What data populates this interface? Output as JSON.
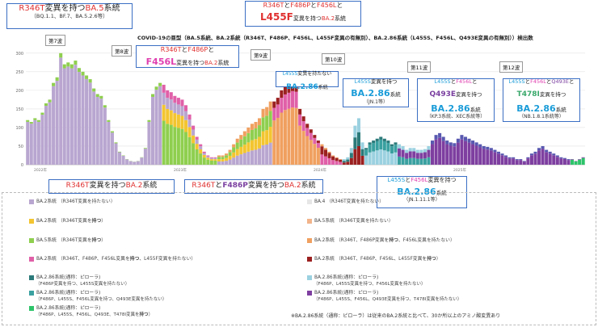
{
  "chart_data": {
    "type": "bar",
    "stacked": true,
    "title": "COVID-19の亜型（BA.5系統、BA.2系統（R346T、F486P、F456L、L455F変異の有無別）、BA.2.86系統（L455S、F456L、Q493E変異の有無別））検出数",
    "y_ticks": [
      "300",
      "250",
      "200",
      "150",
      "100",
      "50",
      "0"
    ],
    "ylim": [
      0,
      330
    ],
    "x_year_labels": [
      "2022年",
      "2023年",
      "2024年",
      "2025年"
    ],
    "series_colors": [
      "#b9a6d0",
      "#f3c530",
      "#8fcf4f",
      "#f0a060",
      "#e060a8",
      "#2c7a7a",
      "#9bd1e0",
      "#7e3fa0",
      "#e6e6e6",
      "#f2b48a",
      "#9b2020",
      "#3aa0a0",
      "#5858b0",
      "#2ec46a"
    ],
    "weekly_totals": [
      120,
      115,
      125,
      120,
      140,
      165,
      175,
      220,
      235,
      300,
      270,
      275,
      270,
      280,
      260,
      250,
      240,
      230,
      205,
      190,
      185,
      160,
      120,
      90,
      60,
      35,
      25,
      15,
      10,
      8,
      10,
      20,
      45,
      120,
      190,
      210,
      220,
      215,
      200,
      195,
      185,
      180,
      175,
      160,
      135,
      105,
      75,
      55,
      35,
      25,
      20,
      20,
      25,
      25,
      30,
      40,
      55,
      70,
      80,
      90,
      100,
      110,
      115,
      125,
      150,
      155,
      170,
      170,
      180,
      200,
      210,
      215,
      220,
      218,
      150,
      130,
      110,
      95,
      80,
      65,
      55,
      45,
      35,
      25,
      20,
      15,
      15,
      20,
      45,
      105,
      125,
      60,
      45,
      60,
      65,
      70,
      75,
      70,
      65,
      55,
      60,
      55,
      50,
      40,
      45,
      45,
      40,
      40,
      42,
      50,
      65,
      80,
      85,
      75,
      65,
      60,
      58,
      70,
      80,
      75,
      70,
      65,
      60,
      55,
      50,
      48,
      45,
      40,
      35,
      30,
      25,
      20,
      20,
      15,
      15,
      10,
      20,
      30,
      35,
      45,
      50,
      40,
      35,
      30,
      25,
      20,
      18,
      15,
      15,
      10,
      15,
      20
    ],
    "annotations": [
      {
        "l1a": "R346T",
        "l1b": "変異を持つ",
        "l1c": "BA.5",
        "l1d": "系統",
        "l2": "（BQ.1.1、BF.7、BA.5.2.6等）"
      },
      {
        "l1a": "R346T",
        "l1b": "と",
        "l1c": "F486P",
        "l1d": "と",
        "l1e": "F456L",
        "l1f": "と",
        "l2a": "L455F",
        "l2b": "変異を持つ",
        "l2c": "BA.2",
        "l2d": "系統"
      },
      {
        "l1a": "R346T",
        "l1b": "と",
        "l1c": "F486P",
        "l1d": "と",
        "l2a": "F456L",
        "l2b": "変異を持つ",
        "l2c": "BA.2",
        "l2d": "系統"
      },
      {
        "l1a": "L455S",
        "l1b": "変異を持たない",
        "l2a": "BA.2.86",
        "l2b": "系統"
      },
      {
        "l1a": "L455S",
        "l1b": "変異を持つ",
        "l2a": "BA.2.86",
        "l2b": "系統",
        "l3": "（JN.1等）"
      },
      {
        "l1a": "L455S",
        "l1b": "と",
        "l1c": "F456L",
        "l1d": "と",
        "l2a": "Q493E",
        "l2b": "変異を持つ",
        "l3a": "BA.2.86",
        "l3b": "系統",
        "l4": "（KP.3系統、XEC系統等）"
      },
      {
        "l1a": "L455S",
        "l1b": "と",
        "l1c": "F456L",
        "l1d": "と",
        "l1e": "Q493E",
        "l1f": "と",
        "l2a": "T478I",
        "l2b": "変異を持つ",
        "l3a": "BA.2.86",
        "l3b": "系統",
        "l4": "（NB.1.8.1系統等）"
      },
      {
        "l1a": "R346T",
        "l1b": "変異を持つ",
        "l1c": "BA.2",
        "l1d": "系統"
      },
      {
        "l1a": "R346T",
        "l1b": "と",
        "l1c": "F486P",
        "l1d": "変異を持つ",
        "l1e": "BA.2",
        "l1f": "系統"
      },
      {
        "l1a": "L455S",
        "l1b": "と",
        "l1c": "F456L",
        "l1d": "変異を持つ",
        "l2a": "BA.2.86",
        "l2b": "系統",
        "l3": "（JN.1.11.1等）"
      }
    ],
    "waves": [
      "第7波",
      "第8波",
      "第9波",
      "第10波",
      "第11波",
      "第12波"
    ],
    "legend": [
      {
        "label": "BA.2系統",
        "note": "（R346T変異を持たない）",
        "color": "#b9a6d0"
      },
      {
        "label": "BA.4",
        "note": "（R346T変異を持たない）",
        "color": "#e6e6e6"
      },
      {
        "label": "BA.2系統",
        "note": "（R346T変異を",
        "bold": "持つ",
        "tail": "）",
        "color": "#f3c530"
      },
      {
        "label": "BA.5系統",
        "note": "（R346T変異を持たない）",
        "color": "#f2b48a"
      },
      {
        "label": "BA.5系統",
        "note": "（R346T変異を",
        "bold": "持つ",
        "tail": "）",
        "color": "#8fcf4f"
      },
      {
        "label": "BA.2系統",
        "note": "（R346T、F486P変異を",
        "bold": "持つ",
        "tail": "、F456L変異を持たない）",
        "color": "#f0a060"
      },
      {
        "label": "BA.2系統",
        "note": "（R346T、F486P、F456L変異を",
        "bold": "持つ",
        "tail": "、L455F変異を持たない）",
        "color": "#e060a8"
      },
      {
        "label": "BA.2系統",
        "note": "（R346T、F486P、F456L、L455F変異を",
        "bold": "持つ",
        "tail": "）",
        "color": "#9b2020"
      },
      {
        "label": "BA.2.86系統(通称：ピローラ)",
        "sub": "（F486P変異を持つ、L455S変異を持たない）",
        "color": "#2c7a7a"
      },
      {
        "label": "BA.2.86系統(通称：ピローラ)",
        "sub": "（F486P、L455S変異を持つ、F456L変異を持たない）",
        "color": "#9bd1e0"
      },
      {
        "label": "BA.2.86系統(通称：ピローラ)",
        "sub": "（F486P、L455S、F456L変異を持つ、Q493E変異を持たない）",
        "color": "#3aa0a0"
      },
      {
        "label": "BA.2.86系統(通称：ピローラ)",
        "sub": "（F486P、L455S、F456L、Q493E変異を持つ、T478I変異を持たない）",
        "color": "#7e3fa0"
      },
      {
        "label": "BA.2.86系統(通称：ピローラ)",
        "sub": "（F486P、L455S、F456L、Q493E、T478I変異を",
        "bold": "持つ",
        "tail": "）",
        "color": "#2ec46a"
      }
    ],
    "footnote": "※BA.2.86系統（通称：ピローラ）は従来のBA.2系統と比べて、30か所以上のアミノ酸変異あり"
  }
}
